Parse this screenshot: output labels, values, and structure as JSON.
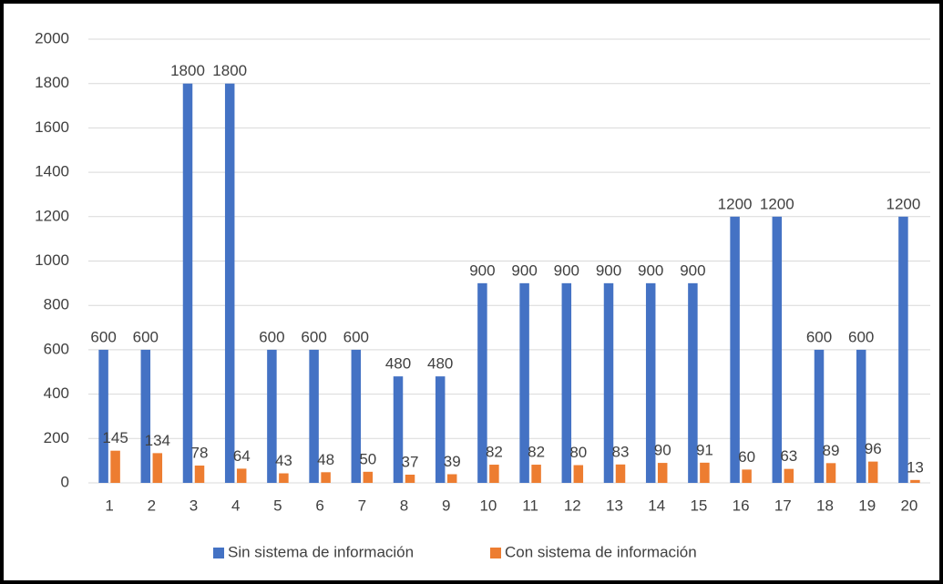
{
  "chart_data": {
    "type": "bar",
    "categories": [
      "1",
      "2",
      "3",
      "4",
      "5",
      "6",
      "7",
      "8",
      "9",
      "10",
      "11",
      "12",
      "13",
      "14",
      "15",
      "16",
      "17",
      "18",
      "19",
      "20"
    ],
    "series": [
      {
        "name": "Sin sistema de información",
        "color": "#4472c4",
        "values": [
          600,
          600,
          1800,
          1800,
          600,
          600,
          600,
          480,
          480,
          900,
          900,
          900,
          900,
          900,
          900,
          1200,
          1200,
          600,
          600,
          1200
        ]
      },
      {
        "name": "Con sistema de información",
        "color": "#ed7d31",
        "values": [
          145,
          134,
          78,
          64,
          43,
          48,
          50,
          37,
          39,
          82,
          82,
          80,
          83,
          90,
          91,
          60,
          63,
          89,
          96,
          13
        ]
      }
    ],
    "ylim": [
      0,
      2000
    ],
    "yticks": [
      0,
      200,
      400,
      600,
      800,
      1000,
      1200,
      1400,
      1600,
      1800,
      2000
    ],
    "grid": true,
    "legend": "bottom"
  }
}
